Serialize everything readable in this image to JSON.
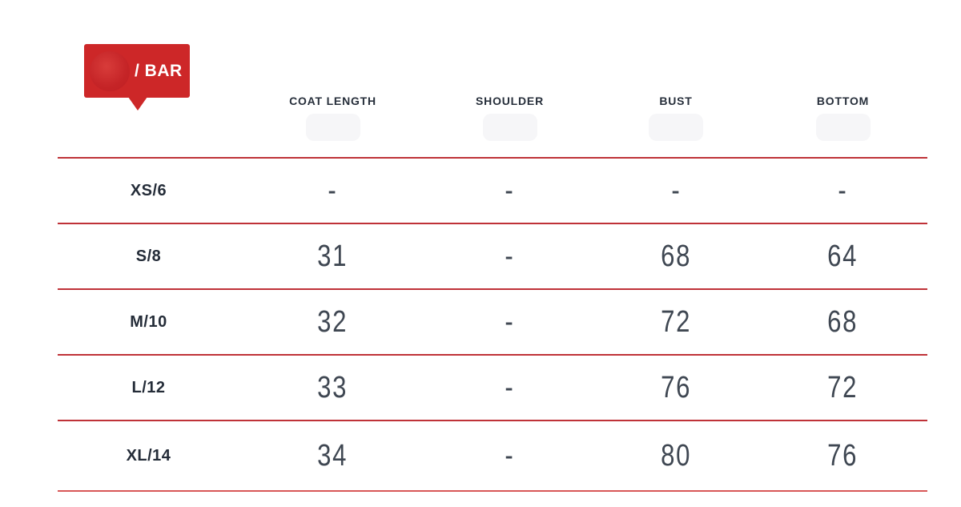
{
  "badge": {
    "label": "/ BAR",
    "color": "#cd2728"
  },
  "table": {
    "columns": [
      "COAT LENGTH",
      "SHOULDER",
      "BUST",
      "BOTTOM"
    ],
    "rows": [
      {
        "size": "XS/6",
        "values": [
          "-",
          "-",
          "-",
          "-"
        ]
      },
      {
        "size": "S/8",
        "values": [
          "31",
          "-",
          "68",
          "64"
        ]
      },
      {
        "size": "M/10",
        "values": [
          "32",
          "-",
          "72",
          "68"
        ]
      },
      {
        "size": "L/12",
        "values": [
          "33",
          "-",
          "76",
          "72"
        ]
      },
      {
        "size": "XL/14",
        "values": [
          "34",
          "-",
          "80",
          "76"
        ]
      }
    ]
  },
  "colors": {
    "accent_red": "#cd2728",
    "line_red": "#bf3238",
    "heading_text": "#272f3b",
    "value_text": "#3f4752"
  }
}
